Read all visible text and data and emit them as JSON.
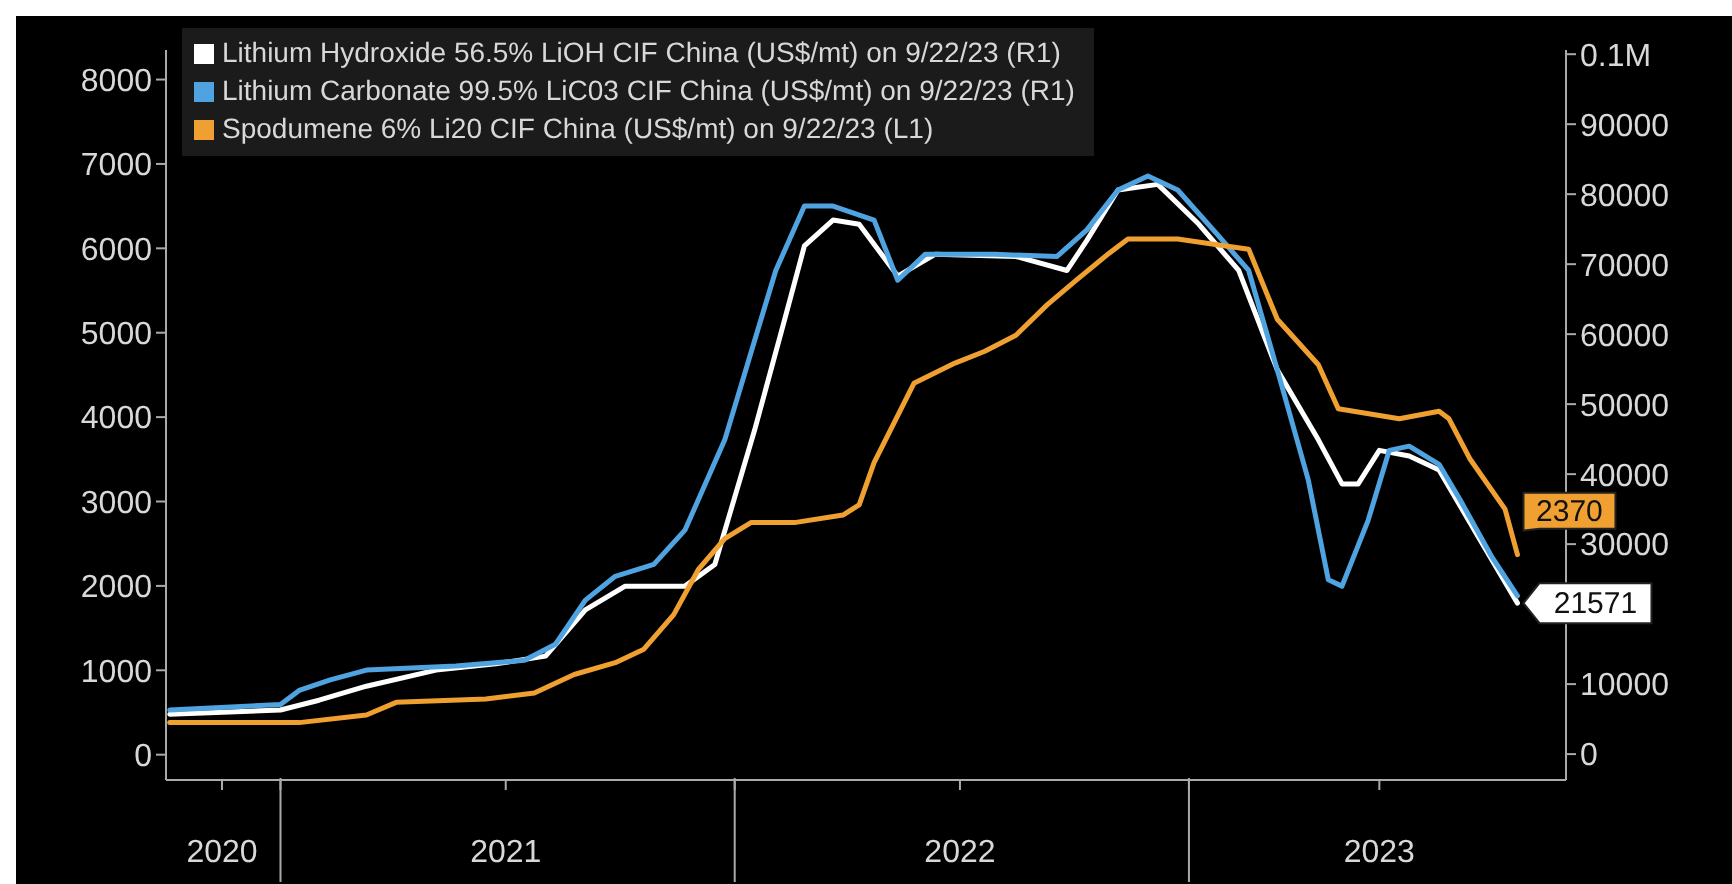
{
  "chart_data": {
    "type": "line",
    "legend": "top left",
    "grid": false,
    "marker": "none",
    "line_style": "solid",
    "xlim": [
      "2020-10-01",
      "2023-10-31"
    ],
    "xticks": [
      {
        "value": "2020-11-15",
        "label": "2020"
      },
      {
        "value": "2021-01-01",
        "label": null
      },
      {
        "value": "2021-07-01",
        "label": "2021"
      },
      {
        "value": "2022-01-01",
        "label": null
      },
      {
        "value": "2022-07-01",
        "label": "2022"
      },
      {
        "value": "2023-01-01",
        "label": null
      },
      {
        "value": "2023-06-03",
        "label": "2023"
      }
    ],
    "ylim": [
      -300,
      8350
    ],
    "yticks": [
      0,
      1000,
      2000,
      3000,
      4000,
      5000,
      6000,
      7000,
      8000
    ],
    "y2lim": [
      -3700,
      100600
    ],
    "y2ticks": [
      0,
      10000,
      {
        "value": 20000,
        "label": null
      },
      30000,
      40000,
      50000,
      60000,
      70000,
      80000,
      90000,
      {
        "value": 100000,
        "label": "0.1M"
      }
    ],
    "series": [
      {
        "name": "Lithium Hydroxide 56.5% LiOH CIF China (US$/mt) on 9/22/23 (R1)",
        "color": "#ffffff",
        "axis": "y2",
        "x": [
          "2020-10-04",
          "2021-01-01",
          "2021-02-01",
          "2021-03-11",
          "2021-05-06",
          "2021-06-23",
          "2021-08-02",
          "2021-09-03",
          "2021-10-05",
          "2021-11-22",
          "2021-12-16",
          "2022-01-17",
          "2022-02-10",
          "2022-02-26",
          "2022-03-21",
          "2022-04-11",
          "2022-05-12",
          "2022-06-11",
          "2022-08-15",
          "2022-09-25",
          "2022-10-11",
          "2022-11-05",
          "2022-12-07",
          "2023-01-09",
          "2023-02-10",
          "2023-03-13",
          "2023-04-15",
          "2023-05-04",
          "2023-05-17",
          "2023-06-03",
          "2023-06-27",
          "2023-07-21",
          "2023-08-23",
          "2023-09-22"
        ],
        "values": [
          5700,
          6300,
          7700,
          9700,
          12000,
          12900,
          14000,
          20600,
          24000,
          24000,
          27100,
          46300,
          62000,
          72600,
          76300,
          75700,
          68300,
          71400,
          71100,
          69100,
          73400,
          80600,
          81400,
          75700,
          69100,
          54900,
          44900,
          38600,
          38600,
          43400,
          42600,
          40600,
          30600,
          21571
        ],
        "value_labels": [
          null,
          null,
          null,
          null,
          null,
          null,
          null,
          null,
          null,
          null,
          null,
          null,
          null,
          null,
          null,
          null,
          null,
          null,
          null,
          null,
          null,
          null,
          null,
          null,
          null,
          null,
          null,
          null,
          null,
          null,
          null,
          null,
          null,
          "21571"
        ]
      },
      {
        "name": "Lithium Carbonate 99.5% LiC03 CIF China (US$/mt) on 9/22/23 (R1)",
        "color": "#4fa3e0",
        "axis": "y2",
        "x": [
          "2020-10-04",
          "2021-01-01",
          "2021-01-16",
          "2021-02-10",
          "2021-03-11",
          "2021-05-22",
          "2021-07-16",
          "2021-08-10",
          "2021-09-03",
          "2021-09-27",
          "2021-10-28",
          "2021-11-22",
          "2021-12-24",
          "2022-01-17",
          "2022-02-03",
          "2022-02-26",
          "2022-03-21",
          "2022-04-23",
          "2022-05-12",
          "2022-06-03",
          "2022-07-29",
          "2022-09-17",
          "2022-10-11",
          "2022-11-05",
          "2022-11-29",
          "2022-12-23",
          "2023-01-25",
          "2023-02-18",
          "2023-03-13",
          "2023-04-07",
          "2023-04-23",
          "2023-05-04",
          "2023-05-25",
          "2023-06-11",
          "2023-06-27",
          "2023-07-21",
          "2023-08-07",
          "2023-09-01",
          "2023-09-22"
        ],
        "values": [
          6300,
          7100,
          9100,
          10600,
          12000,
          12600,
          13400,
          15700,
          22000,
          25400,
          27100,
          32000,
          44900,
          59100,
          69100,
          78300,
          78300,
          76300,
          67700,
          71400,
          71400,
          71100,
          74900,
          80600,
          82600,
          80600,
          74000,
          69100,
          54900,
          39100,
          24900,
          24000,
          33400,
          43400,
          44000,
          41400,
          36300,
          28300,
          22600
        ]
      },
      {
        "name": "Spodumene 6% Li20 CIF China (US$/mt) on 9/22/23 (L1)",
        "color": "#f0a030",
        "axis": "y",
        "x": [
          "2020-10-04",
          "2021-01-16",
          "2021-03-11",
          "2021-04-04",
          "2021-06-15",
          "2021-07-24",
          "2021-08-25",
          "2021-09-27",
          "2021-10-20",
          "2021-11-13",
          "2021-12-03",
          "2021-12-24",
          "2022-01-14",
          "2022-02-18",
          "2022-03-29",
          "2022-04-11",
          "2022-04-23",
          "2022-05-25",
          "2022-06-27",
          "2022-07-21",
          "2022-08-15",
          "2022-09-09",
          "2022-10-03",
          "2022-10-27",
          "2022-11-13",
          "2022-12-23",
          "2023-01-25",
          "2023-02-18",
          "2023-03-13",
          "2023-04-15",
          "2023-05-01",
          "2023-06-19",
          "2023-07-21",
          "2023-07-29",
          "2023-08-15",
          "2023-09-12",
          "2023-09-22"
        ],
        "values": [
          380,
          380,
          470,
          620,
          660,
          730,
          950,
          1090,
          1250,
          1660,
          2200,
          2560,
          2750,
          2750,
          2840,
          2960,
          3460,
          4400,
          4640,
          4780,
          4970,
          5330,
          5630,
          5920,
          6110,
          6110,
          6040,
          5990,
          5160,
          4620,
          4100,
          3980,
          4070,
          3980,
          3500,
          2910,
          2370
        ],
        "value_labels": [
          null,
          null,
          null,
          null,
          null,
          null,
          null,
          null,
          null,
          null,
          null,
          null,
          null,
          null,
          null,
          null,
          null,
          null,
          null,
          null,
          null,
          null,
          null,
          null,
          null,
          null,
          null,
          null,
          null,
          null,
          null,
          null,
          null,
          null,
          null,
          null,
          "2370"
        ]
      }
    ]
  }
}
